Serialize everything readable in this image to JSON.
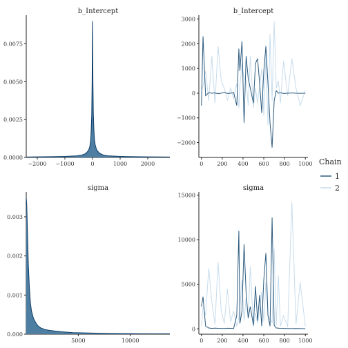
{
  "legend": {
    "title": "Chain",
    "items": [
      {
        "label": "1",
        "color": "#2b5a7e"
      },
      {
        "label": "2",
        "color": "#c7dcec"
      }
    ]
  },
  "chart_data": [
    {
      "type": "area",
      "title": "b_Intercept",
      "xlabel": "",
      "ylabel": "",
      "xlim": [
        -2400,
        2800
      ],
      "ylim": [
        0,
        0.0093
      ],
      "xticks": [
        -2000,
        -1000,
        0,
        1000,
        2000
      ],
      "xtick_labels": [
        "−2000",
        "−1000",
        "0",
        "1000",
        "2000"
      ],
      "yticks": [
        0.0,
        0.0025,
        0.005,
        0.0075
      ],
      "ytick_labels": [
        "0.0000",
        "0.0025",
        "0.0050",
        "0.0075"
      ],
      "fill_color": "#4e7fa3",
      "line_color": "#0e3c66",
      "x": [
        -2400,
        -2000,
        -1500,
        -1000,
        -600,
        -400,
        -250,
        -150,
        -100,
        -70,
        -50,
        -30,
        -15,
        -5,
        0,
        5,
        15,
        30,
        50,
        70,
        100,
        150,
        250,
        400,
        600,
        1000,
        1500,
        2000,
        2800
      ],
      "y": [
        3e-05,
        4e-05,
        5e-05,
        7e-05,
        0.0001,
        0.00015,
        0.00025,
        0.00045,
        0.0007,
        0.0011,
        0.0017,
        0.0028,
        0.005,
        0.008,
        0.009,
        0.0078,
        0.005,
        0.0029,
        0.0018,
        0.0012,
        0.0008,
        0.0005,
        0.00028,
        0.00015,
        0.0001,
        7e-05,
        5e-05,
        4e-05,
        3e-05
      ]
    },
    {
      "type": "line",
      "title": "b_Intercept",
      "xlabel": "",
      "ylabel": "",
      "xlim": [
        -25,
        1025
      ],
      "ylim": [
        -2600,
        3100
      ],
      "xticks": [
        0,
        200,
        400,
        600,
        800,
        1000
      ],
      "xtick_labels": [
        "0",
        "200",
        "400",
        "600",
        "800",
        "1000"
      ],
      "yticks": [
        -2000,
        -1000,
        0,
        1000,
        2000,
        3000
      ],
      "ytick_labels": [
        "−2000",
        "−1000",
        "0",
        "1000",
        "2000",
        "3000"
      ],
      "x": [
        0,
        15,
        40,
        70,
        100,
        130,
        160,
        190,
        220,
        250,
        280,
        310,
        340,
        360,
        370,
        390,
        410,
        430,
        450,
        470,
        500,
        520,
        540,
        560,
        580,
        600,
        620,
        640,
        660,
        680,
        700,
        720,
        740,
        760,
        790,
        830,
        870,
        910,
        950,
        1000
      ],
      "series": [
        {
          "name": "1",
          "y": [
            -500,
            2300,
            -100,
            20,
            0,
            10,
            -20,
            0,
            30,
            -10,
            0,
            20,
            -500,
            1800,
            900,
            2100,
            -1200,
            1500,
            600,
            200,
            -400,
            1200,
            1400,
            400,
            -800,
            900,
            1900,
            400,
            -1200,
            -2200,
            -300,
            100,
            0,
            20,
            -10,
            0,
            10,
            0,
            -5,
            0
          ]
        },
        {
          "name": "2",
          "y": [
            100,
            300,
            900,
            -300,
            1500,
            -400,
            1900,
            500,
            200,
            -300,
            200,
            -200,
            400,
            -600,
            300,
            1200,
            600,
            500,
            -500,
            1500,
            -600,
            200,
            -400,
            300,
            1000,
            -900,
            1600,
            -1300,
            2400,
            -300,
            2900,
            200,
            500,
            -400,
            1300,
            -100,
            1400,
            200,
            -500,
            100
          ]
        }
      ]
    },
    {
      "type": "area",
      "title": "sigma",
      "xlabel": "",
      "ylabel": "",
      "xlim": [
        0,
        13800
      ],
      "ylim": [
        0,
        0.0036
      ],
      "xticks": [
        5000,
        10000
      ],
      "xtick_labels": [
        "5000",
        "10000"
      ],
      "yticks": [
        0.0,
        0.001,
        0.002,
        0.003
      ],
      "ytick_labels": [
        "0.000",
        "0.001",
        "0.002",
        "0.003"
      ],
      "fill_color": "#4e7fa3",
      "line_color": "#0e3c66",
      "x": [
        0,
        50,
        100,
        200,
        300,
        400,
        500,
        700,
        900,
        1100,
        1400,
        1800,
        2200,
        2800,
        3500,
        4500,
        6000,
        8000,
        10000,
        12000,
        13800
      ],
      "y": [
        0.0035,
        0.0033,
        0.0028,
        0.0018,
        0.0012,
        0.0008,
        0.0006,
        0.0004,
        0.0003,
        0.00022,
        0.00016,
        0.00012,
        0.0001,
        8e-05,
        6e-05,
        4e-05,
        3e-05,
        2e-05,
        1.5e-05,
        1e-05,
        1e-05
      ]
    },
    {
      "type": "line",
      "title": "sigma",
      "xlabel": "",
      "ylabel": "",
      "xlim": [
        -25,
        1025
      ],
      "ylim": [
        -600,
        15200
      ],
      "xticks": [
        0,
        200,
        400,
        600,
        800,
        1000
      ],
      "xtick_labels": [
        "0",
        "200",
        "400",
        "600",
        "800",
        "1000"
      ],
      "yticks": [
        0,
        5000,
        10000,
        15000
      ],
      "ytick_labels": [
        "0",
        "5000",
        "10000",
        "15000"
      ],
      "x": [
        0,
        15,
        40,
        70,
        100,
        130,
        160,
        190,
        220,
        250,
        280,
        310,
        340,
        360,
        370,
        390,
        410,
        430,
        450,
        470,
        500,
        520,
        540,
        560,
        580,
        600,
        620,
        640,
        660,
        680,
        700,
        720,
        740,
        760,
        790,
        830,
        870,
        910,
        950,
        1000
      ],
      "series": [
        {
          "name": "1",
          "y": [
            2500,
            3600,
            300,
            100,
            50,
            80,
            60,
            50,
            40,
            70,
            60,
            50,
            1500,
            11000,
            600,
            2000,
            9500,
            4000,
            1200,
            2500,
            400,
            4800,
            900,
            3800,
            300,
            5500,
            8500,
            1500,
            300,
            12500,
            400,
            100,
            80,
            60,
            50,
            40,
            30,
            40,
            30,
            20
          ]
        },
        {
          "name": "2",
          "y": [
            300,
            2500,
            1500,
            6800,
            3000,
            500,
            7500,
            2000,
            600,
            4500,
            800,
            2000,
            300,
            1200,
            2500,
            5500,
            900,
            3500,
            1200,
            7000,
            200,
            1800,
            600,
            2200,
            4200,
            800,
            5200,
            1500,
            1000,
            700,
            9000,
            400,
            6000,
            300,
            1500,
            200,
            14200,
            500,
            5200,
            300
          ]
        }
      ]
    }
  ]
}
